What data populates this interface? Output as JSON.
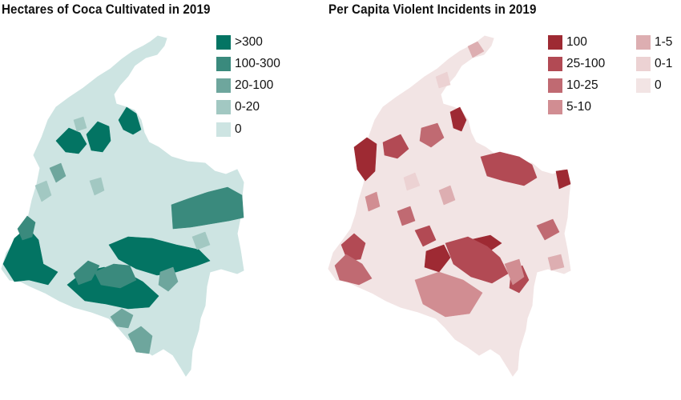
{
  "maps": [
    {
      "title": "Hectares of Coca Cultivated in 2019",
      "base_color": "#cde4e2",
      "legend": [
        {
          "label": ">300",
          "color": "#037463"
        },
        {
          "label": "100-300",
          "color": "#3a8a7d"
        },
        {
          "label": "20-100",
          "color": "#6ea69d"
        },
        {
          "label": "0-20",
          "color": "#a2c8c2"
        },
        {
          "label": "0",
          "color": "#cde4e2"
        }
      ]
    },
    {
      "title": "Per Capita Violent Incidents in 2019",
      "base_color": "#f2e4e4",
      "legend": [
        {
          "label": "100",
          "color": "#9e2a33"
        },
        {
          "label": "25-100",
          "color": "#b24a54"
        },
        {
          "label": "10-25",
          "color": "#c06a72"
        },
        {
          "label": "5-10",
          "color": "#d18d92"
        },
        {
          "label": "1-5",
          "color": "#ddaeb1"
        },
        {
          "label": "0-1",
          "color": "#ecd2d3"
        },
        {
          "label": "0",
          "color": "#f2e4e4"
        }
      ]
    }
  ]
}
